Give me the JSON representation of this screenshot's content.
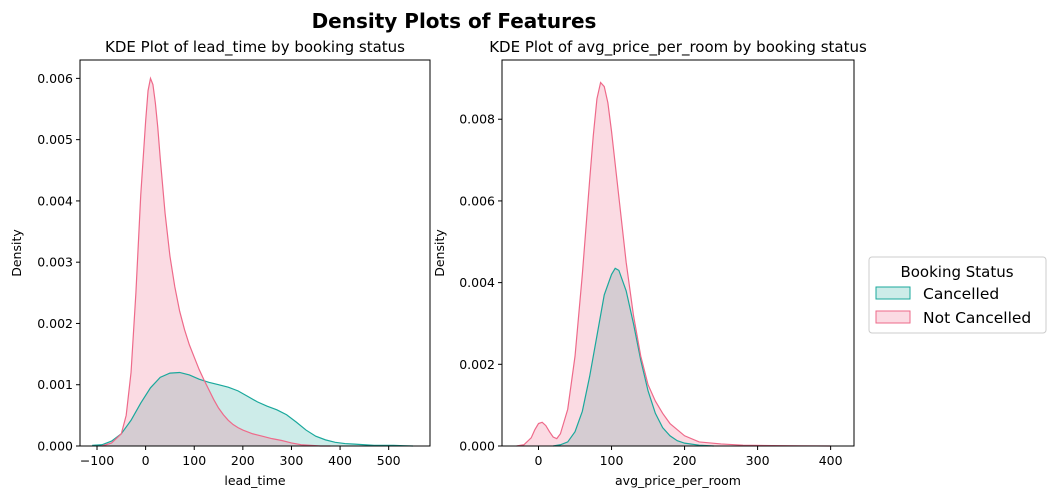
{
  "figure": {
    "title": "Density Plots of Features"
  },
  "legend": {
    "title": "Booking Status",
    "placement": "right",
    "items": [
      {
        "label": "Cancelled",
        "color": "#1aa89c"
      },
      {
        "label": "Not Cancelled",
        "color": "#ee6a8a"
      }
    ]
  },
  "chart_data": [
    {
      "type": "area",
      "subtype": "kde",
      "title": "KDE Plot of lead_time by booking status",
      "xlabel": "lead_time",
      "ylabel": "Density",
      "xlim": [
        -135,
        585
      ],
      "ylim": [
        0,
        0.0063
      ],
      "xticks": [
        -100,
        0,
        100,
        200,
        300,
        400,
        500
      ],
      "xticklabels": [
        "−100",
        "0",
        "100",
        "200",
        "300",
        "400",
        "500"
      ],
      "yticks": [
        0,
        0.001,
        0.002,
        0.003,
        0.004,
        0.005,
        0.006
      ],
      "yticklabels": [
        "0.000",
        "0.001",
        "0.002",
        "0.003",
        "0.004",
        "0.005",
        "0.006"
      ],
      "grid": false,
      "series": [
        {
          "name": "Cancelled",
          "color": "#1aa89c",
          "x": [
            -110,
            -90,
            -70,
            -50,
            -30,
            -10,
            10,
            30,
            50,
            70,
            90,
            110,
            130,
            150,
            170,
            190,
            210,
            230,
            250,
            270,
            290,
            310,
            330,
            350,
            370,
            390,
            410,
            430,
            450,
            470,
            490,
            510,
            530,
            550
          ],
          "y": [
            1e-05,
            2e-05,
            8e-05,
            0.0002,
            0.00042,
            0.0007,
            0.00095,
            0.00112,
            0.00119,
            0.0012,
            0.00116,
            0.00109,
            0.00104,
            0.001,
            0.00096,
            0.0009,
            0.00081,
            0.00072,
            0.00065,
            0.00059,
            0.00051,
            0.00039,
            0.00026,
            0.00016,
            0.0001,
            6e-05,
            4e-05,
            3e-05,
            2e-05,
            1e-05,
            1e-05,
            1e-05,
            5e-06,
            0
          ]
        },
        {
          "name": "Not Cancelled",
          "color": "#ee6a8a",
          "x": [
            -90,
            -70,
            -50,
            -40,
            -30,
            -20,
            -10,
            0,
            5,
            10,
            15,
            20,
            25,
            30,
            40,
            50,
            60,
            70,
            80,
            90,
            100,
            110,
            120,
            130,
            140,
            150,
            160,
            170,
            180,
            190,
            200,
            220,
            240,
            260,
            280,
            300,
            320,
            340,
            360,
            380
          ],
          "y": [
            0,
            5e-05,
            0.0002,
            0.0005,
            0.0012,
            0.0025,
            0.0041,
            0.0053,
            0.0058,
            0.006,
            0.0059,
            0.0056,
            0.0052,
            0.0047,
            0.0038,
            0.0031,
            0.0026,
            0.0022,
            0.0019,
            0.00165,
            0.00145,
            0.00125,
            0.00108,
            0.00092,
            0.00076,
            0.00062,
            0.00051,
            0.00042,
            0.00035,
            0.0003,
            0.00026,
            0.0002,
            0.00016,
            0.00012,
            9e-05,
            5e-05,
            2e-05,
            1e-05,
            0,
            0
          ]
        }
      ]
    },
    {
      "type": "area",
      "subtype": "kde",
      "title": "KDE Plot of avg_price_per_room by booking status",
      "xlabel": "avg_price_per_room",
      "ylabel": "Density",
      "xlim": [
        -50,
        432
      ],
      "ylim": [
        0,
        0.00945
      ],
      "xticks": [
        0,
        100,
        200,
        300,
        400
      ],
      "xticklabels": [
        "0",
        "100",
        "200",
        "300",
        "400"
      ],
      "yticks": [
        0,
        0.002,
        0.004,
        0.006,
        0.008
      ],
      "yticklabels": [
        "0.000",
        "0.002",
        "0.004",
        "0.006",
        "0.008"
      ],
      "grid": false,
      "series": [
        {
          "name": "Cancelled",
          "color": "#1aa89c",
          "x": [
            20,
            30,
            40,
            50,
            60,
            70,
            80,
            90,
            100,
            105,
            110,
            120,
            130,
            140,
            150,
            160,
            170,
            180,
            190,
            200,
            220,
            240
          ],
          "y": [
            0,
            3e-05,
            0.0001,
            0.00035,
            0.00085,
            0.0017,
            0.0027,
            0.0037,
            0.0042,
            0.00435,
            0.0043,
            0.0038,
            0.003,
            0.0021,
            0.00135,
            0.0008,
            0.00045,
            0.00025,
            0.00013,
            7e-05,
            2e-05,
            0
          ]
        },
        {
          "name": "Not Cancelled",
          "color": "#ee6a8a",
          "x": [
            -30,
            -20,
            -10,
            -5,
            0,
            5,
            10,
            15,
            20,
            25,
            30,
            40,
            50,
            60,
            70,
            75,
            80,
            85,
            90,
            95,
            100,
            110,
            120,
            130,
            140,
            150,
            160,
            170,
            180,
            200,
            220,
            250,
            280,
            320,
            360,
            400
          ],
          "y": [
            0,
            3e-05,
            0.0002,
            0.0004,
            0.00055,
            0.00058,
            0.0005,
            0.00035,
            0.00022,
            0.00018,
            0.0003,
            0.0009,
            0.0022,
            0.0042,
            0.0065,
            0.0076,
            0.0085,
            0.0089,
            0.0088,
            0.0084,
            0.0077,
            0.0061,
            0.0045,
            0.0032,
            0.0022,
            0.0015,
            0.0011,
            0.0008,
            0.00055,
            0.00025,
            0.0001,
            5e-05,
            2e-05,
            1e-05,
            5e-06,
            0
          ]
        }
      ]
    }
  ]
}
